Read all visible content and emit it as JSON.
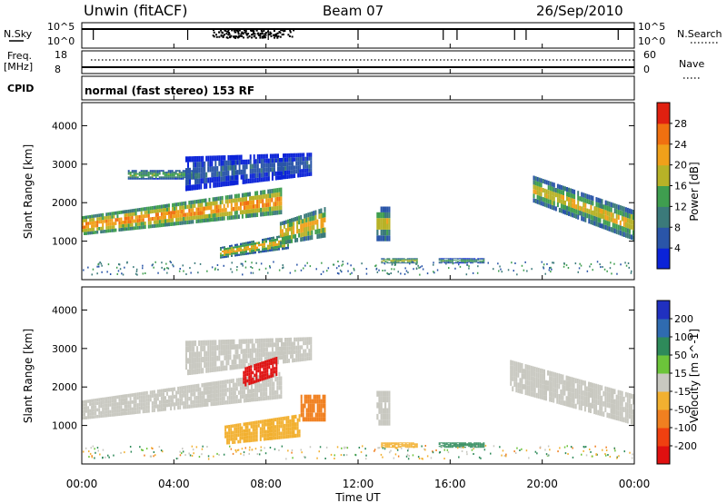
{
  "header": {
    "station": "Unwin (fitACF)",
    "beam": "Beam 07",
    "date": "26/Sep/2010"
  },
  "strips": {
    "nsky_label": "N.Sky",
    "nsky_hi": "10^5",
    "nsky_lo": "10^0",
    "nsearch_label": "N.Search",
    "nsearch_hi": "10^5",
    "nsearch_lo": "10^0",
    "freq_label": "Freq.",
    "freq_unit": "[MHz]",
    "freq_hi": "18",
    "freq_lo": "8",
    "nave_label": "Nave",
    "nave_hi": "60",
    "nave_lo": "0",
    "cpid_label": "CPID",
    "cpid_text": "normal (fast stereo) 153 RF"
  },
  "axes": {
    "ylabel": "Slant Range [km]",
    "xlabel": "Time UT",
    "yticks": [
      "1000",
      "2000",
      "3000",
      "4000"
    ],
    "xticks": [
      "00:00",
      "04:00",
      "08:00",
      "12:00",
      "16:00",
      "20:00",
      "00:00"
    ]
  },
  "colorbars": {
    "power": {
      "label": "Power [dB]",
      "ticks": [
        "4",
        "8",
        "12",
        "16",
        "20",
        "24",
        "28"
      ],
      "colors": [
        "#0b23d8",
        "#2a55a8",
        "#3b7a7a",
        "#3f9e4f",
        "#b7b227",
        "#f0a01a",
        "#f07010",
        "#e02010"
      ]
    },
    "velocity": {
      "label": "Velocity [m s^-1]",
      "ticks": [
        "200",
        "100",
        "50",
        "15",
        "-15",
        "-50",
        "-100",
        "-200"
      ],
      "colors": [
        "#2030c0",
        "#2f6bb0",
        "#2e8a5a",
        "#6cc43a",
        "#c8c8c0",
        "#f2b030",
        "#f08020",
        "#f04010",
        "#e01010"
      ]
    }
  },
  "chart_data": [
    {
      "type": "heatmap",
      "panel": "power",
      "x_range": [
        "00:00",
        "24:00"
      ],
      "ylim": [
        0,
        4600
      ],
      "colorbar": "Power [dB]",
      "clim": [
        0,
        32
      ],
      "regions": [
        {
          "t0": 0.0,
          "t1": 8.7,
          "r0_start": 1150,
          "r1_start": 1650,
          "r0_end": 1700,
          "r1_end": 2400,
          "power": 18,
          "core": 26
        },
        {
          "t0": 2.0,
          "t1": 5.0,
          "r0_start": 2600,
          "r1_start": 2850,
          "r0_end": 2600,
          "r1_end": 2850,
          "power": 12,
          "core": 16
        },
        {
          "t0": 4.5,
          "t1": 10.0,
          "r0_start": 2300,
          "r1_start": 3200,
          "r0_end": 2700,
          "r1_end": 3300,
          "power": 6,
          "core": 8
        },
        {
          "t0": 6.0,
          "t1": 9.0,
          "r0_start": 550,
          "r1_start": 850,
          "r0_end": 800,
          "r1_end": 1200,
          "power": 14,
          "core": 24
        },
        {
          "t0": 8.6,
          "t1": 10.6,
          "r0_start": 900,
          "r1_start": 1500,
          "r0_end": 1100,
          "r1_end": 1900,
          "power": 16,
          "core": 24
        },
        {
          "t0": 12.8,
          "t1": 13.4,
          "r0_start": 1000,
          "r1_start": 1900,
          "r0_end": 1000,
          "r1_end": 1900,
          "power": 12,
          "core": 22
        },
        {
          "t0": 13.0,
          "t1": 14.6,
          "r0_start": 420,
          "r1_start": 560,
          "r0_end": 420,
          "r1_end": 560,
          "power": 14,
          "core": 20
        },
        {
          "t0": 15.5,
          "t1": 17.5,
          "r0_start": 420,
          "r1_start": 560,
          "r0_end": 420,
          "r1_end": 560,
          "power": 10,
          "core": 16
        },
        {
          "t0": 19.6,
          "t1": 24.0,
          "r0_start": 2000,
          "r1_start": 2700,
          "r0_end": 1000,
          "r1_end": 1800,
          "power": 14,
          "core": 22
        }
      ]
    },
    {
      "type": "heatmap",
      "panel": "velocity",
      "x_range": [
        "00:00",
        "24:00"
      ],
      "ylim": [
        0,
        4600
      ],
      "colorbar": "Velocity [m s^-1]",
      "clim": [
        -250,
        250
      ],
      "regions": [
        {
          "t0": 0.0,
          "t1": 8.7,
          "r0_start": 1150,
          "r1_start": 1650,
          "r0_end": 1700,
          "r1_end": 2400,
          "velocity": 0
        },
        {
          "t0": 4.5,
          "t1": 10.0,
          "r0_start": 2300,
          "r1_start": 3200,
          "r0_end": 2700,
          "r1_end": 3300,
          "velocity": 0
        },
        {
          "t0": 7.0,
          "t1": 8.5,
          "r0_start": 2000,
          "r1_start": 2500,
          "r0_end": 2300,
          "r1_end": 2800,
          "velocity": -220
        },
        {
          "t0": 6.2,
          "t1": 9.5,
          "r0_start": 500,
          "r1_start": 1000,
          "r0_end": 700,
          "r1_end": 1300,
          "velocity": -40
        },
        {
          "t0": 9.5,
          "t1": 10.6,
          "r0_start": 1100,
          "r1_start": 1800,
          "r0_end": 1100,
          "r1_end": 1800,
          "velocity": -90
        },
        {
          "t0": 12.8,
          "t1": 13.4,
          "r0_start": 1000,
          "r1_start": 1900,
          "r0_end": 1000,
          "r1_end": 1900,
          "velocity": 0
        },
        {
          "t0": 13.0,
          "t1": 14.6,
          "r0_start": 420,
          "r1_start": 560,
          "r0_end": 420,
          "r1_end": 560,
          "velocity": -30
        },
        {
          "t0": 15.5,
          "t1": 17.5,
          "r0_start": 420,
          "r1_start": 560,
          "r0_end": 420,
          "r1_end": 560,
          "velocity": 40
        },
        {
          "t0": 18.6,
          "t1": 24.0,
          "r0_start": 1900,
          "r1_start": 2700,
          "r0_end": 1000,
          "r1_end": 1800,
          "velocity": 0
        }
      ]
    }
  ]
}
